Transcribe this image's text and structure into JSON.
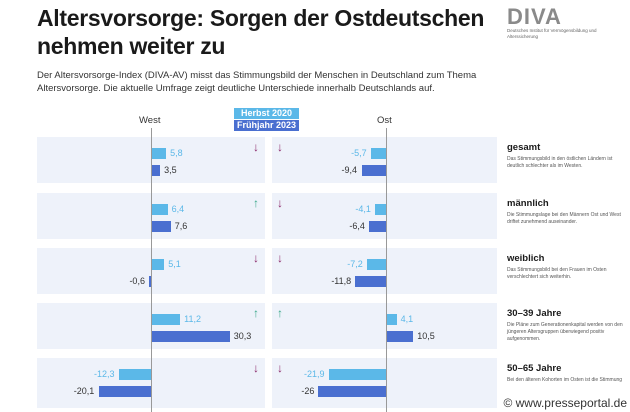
{
  "title": "Altersvorsorge: Sorgen der Ostdeutschen nehmen weiter zu",
  "logo": {
    "mark": "DIVA",
    "sub": "Deutsches Institut für Vermögensbildung und Alterssicherung"
  },
  "intro": "Der Altersvorsorge-Index (DIVA-AV) misst das Stimmungsbild der Menschen in Deutschland zum Thema Altersvorsorge. Die aktuelle Umfrage zeigt deutliche Unterschiede innerhalb Deutschlands auf.",
  "watermark": "© www.presseportal.de",
  "colors": {
    "herbst2020": "#5bb8e8",
    "fruehjahr2023": "#4a6fd0",
    "up": "#3aa88a",
    "down": "#8b2a6b"
  },
  "chart_data": {
    "type": "bar",
    "orientation": "horizontal",
    "panels": [
      "West",
      "Ost"
    ],
    "series": [
      {
        "name": "Herbst 2020"
      },
      {
        "name": "Frühjahr 2023"
      }
    ],
    "categories": [
      {
        "label": "gesamt",
        "desc": "Das Stimmungsbild in den östlichen Ländern ist deutlich schlechter als im Westen.",
        "west": [
          5.8,
          3.5
        ],
        "ost": [
          -5.7,
          -9.4
        ],
        "trend_west": "down",
        "trend_ost": "down"
      },
      {
        "label": "männlich",
        "desc": "Die Stimmungslage bei den Männern Ost und West driftet zunehmend auseinander.",
        "west": [
          6.4,
          7.6
        ],
        "ost": [
          -4.1,
          -6.4
        ],
        "trend_west": "up",
        "trend_ost": "down"
      },
      {
        "label": "weiblich",
        "desc": "Das Stimmungsbild bei den Frauen im Osten verschlechtert sich weiterhin.",
        "west": [
          5.1,
          -0.6
        ],
        "ost": [
          -7.2,
          -11.8
        ],
        "trend_west": "down",
        "trend_ost": "down"
      },
      {
        "label": "30–39 Jahre",
        "desc": "Die Pläne zum Generationenkapital werden von den jüngeren Altersgruppen überwiegend positiv aufgenommen.",
        "west": [
          11.2,
          30.3
        ],
        "ost": [
          4.1,
          10.5
        ],
        "trend_west": "up",
        "trend_ost": "up"
      },
      {
        "label": "50–65 Jahre",
        "desc": "Bei den älteren Kohorten im Osten ist die Stimmung",
        "west": [
          -12.3,
          -20.1
        ],
        "ost": [
          -21.9,
          -26
        ],
        "trend_west": "down",
        "trend_ost": "down"
      }
    ]
  }
}
